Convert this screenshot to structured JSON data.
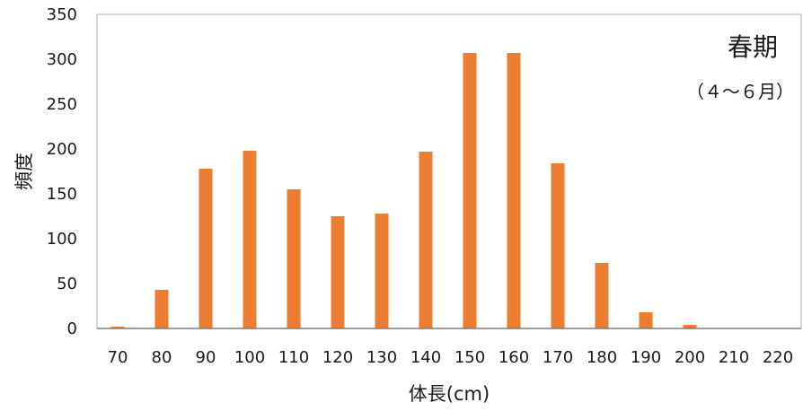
{
  "chart_data": {
    "type": "bar",
    "title": "春期",
    "subtitle": "（４～６月）",
    "xlabel": "体長(cm)",
    "ylabel": "頻度",
    "categories": [
      "70",
      "80",
      "90",
      "100",
      "110",
      "120",
      "130",
      "140",
      "150",
      "160",
      "170",
      "180",
      "190",
      "200",
      "210",
      "220"
    ],
    "values": [
      2,
      43,
      178,
      198,
      155,
      125,
      128,
      197,
      307,
      307,
      184,
      73,
      18,
      4,
      0,
      0
    ],
    "ylim": [
      0,
      350
    ],
    "yticks": [
      "0",
      "50",
      "100",
      "150",
      "200",
      "250",
      "300",
      "350"
    ],
    "grid": false,
    "bar_color": "#ED7D31",
    "axis_color": "#7f7f7f"
  }
}
